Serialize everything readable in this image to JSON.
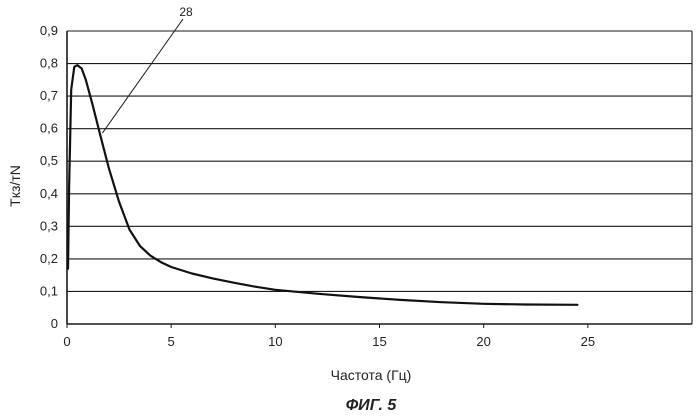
{
  "chart_data": {
    "type": "line",
    "ylabel": "Tкз/тN",
    "xlabel": "Частота (Гц)",
    "caption": "ФИГ. 5",
    "xlim": [
      0,
      30
    ],
    "ylim": [
      0,
      0.9
    ],
    "x_ticks": [
      0,
      5,
      10,
      15,
      20,
      25
    ],
    "y_ticks": [
      0,
      0.1,
      0.2,
      0.3,
      0.4,
      0.5,
      0.6,
      0.7,
      0.8,
      0.9
    ],
    "y_tick_labels": [
      "0",
      "0,1",
      "0,2",
      "0,3",
      "0,4",
      "0,5",
      "0,6",
      "0,7",
      "0,8",
      "0,9"
    ],
    "grid": "horizontal",
    "series": [
      {
        "annotation": "28",
        "color": "#111111",
        "points": [
          [
            0.05,
            0.17
          ],
          [
            0.1,
            0.42
          ],
          [
            0.2,
            0.72
          ],
          [
            0.35,
            0.79
          ],
          [
            0.5,
            0.795
          ],
          [
            0.7,
            0.785
          ],
          [
            0.9,
            0.75
          ],
          [
            1.2,
            0.68
          ],
          [
            1.6,
            0.58
          ],
          [
            2.0,
            0.48
          ],
          [
            2.5,
            0.375
          ],
          [
            3.0,
            0.29
          ],
          [
            3.5,
            0.24
          ],
          [
            4.0,
            0.21
          ],
          [
            4.5,
            0.19
          ],
          [
            5.0,
            0.175
          ],
          [
            6.0,
            0.155
          ],
          [
            7.0,
            0.14
          ],
          [
            8.0,
            0.127
          ],
          [
            9.0,
            0.115
          ],
          [
            10.0,
            0.105
          ],
          [
            12.0,
            0.093
          ],
          [
            14.0,
            0.083
          ],
          [
            16.0,
            0.074
          ],
          [
            18.0,
            0.067
          ],
          [
            20.0,
            0.062
          ],
          [
            22.0,
            0.06
          ],
          [
            24.5,
            0.059
          ]
        ]
      }
    ]
  }
}
